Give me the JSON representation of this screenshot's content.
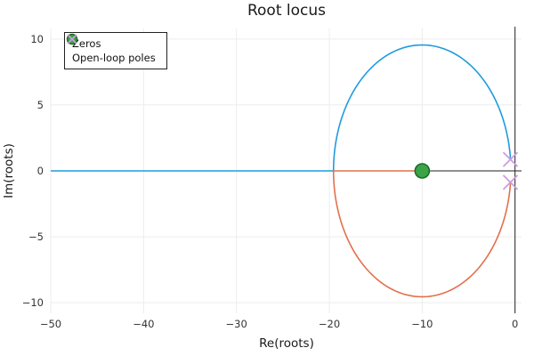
{
  "title": "Root locus",
  "legend": {
    "items": [
      {
        "label": "Zeros",
        "marker": "circle"
      },
      {
        "label": "Open-loop poles",
        "marker": "x"
      }
    ]
  },
  "chart_data": {
    "type": "line",
    "title": "Root locus",
    "xlabel": "Re(roots)",
    "ylabel": "Im(roots)",
    "xlim": [
      -50,
      0.7
    ],
    "ylim": [
      -10.8,
      10.8
    ],
    "grid": true,
    "legend_position": "top-left",
    "xticks": {
      "values": [
        -50,
        -40,
        -30,
        -20,
        -10,
        0
      ],
      "labels": [
        "−50",
        "−40",
        "−30",
        "−20",
        "−10",
        "0"
      ]
    },
    "yticks": {
      "values": [
        -10,
        -5,
        0,
        5,
        10
      ],
      "labels": [
        "−10",
        "−5",
        "0",
        "5",
        "10"
      ]
    },
    "zeros": [
      {
        "re": -10,
        "im": 0
      }
    ],
    "poles": [
      {
        "re": -0.5,
        "im": 0.87
      },
      {
        "re": -0.5,
        "im": -0.87
      }
    ],
    "locus": {
      "circle_center": {
        "re": -10,
        "im": 0
      },
      "circle_radius": 9.55,
      "real_axis_segments": [
        {
          "from": -50,
          "to": -19.55,
          "branch": 1
        },
        {
          "from": -19.55,
          "to": -10,
          "branch": 2
        }
      ],
      "branches": [
        {
          "name": "branch-1",
          "path": "upper semicircle from pole (-0.5, 0.87) to (-19.55, 0), then real axis to -50"
        },
        {
          "name": "branch-2",
          "path": "lower semicircle from pole (-0.5, -0.87) to (-19.55, 0), then real axis to zero at -10"
        }
      ]
    },
    "colors": {
      "branch1": "#1f9bde",
      "branch2": "#e2704b",
      "zero_fill": "#3ba448",
      "zero_stroke": "#1c6b26",
      "pole": "#cf9be0",
      "axis": "#222222",
      "grid": "#ececec"
    }
  }
}
